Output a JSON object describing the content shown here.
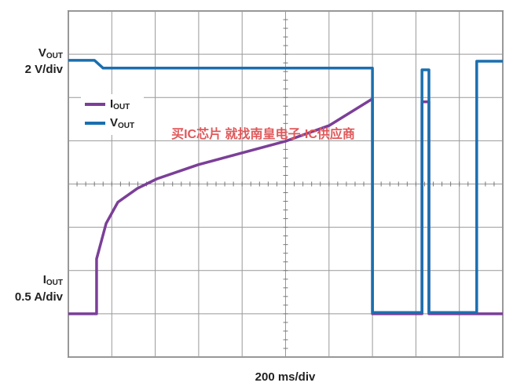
{
  "chart_data": {
    "type": "line",
    "y_label_top": {
      "main": "V",
      "sub": "OUT",
      "scale": "2 V/div"
    },
    "y_label_bottom": {
      "main": "I",
      "sub": "OUT",
      "scale": "0.5 A/div"
    },
    "x_label": "200 ms/div",
    "watermark": "买IC芯片 就找南皇电子-IC供应商",
    "xlim": [
      0,
      10
    ],
    "ylim": [
      0,
      8
    ],
    "xticks": [
      0,
      1,
      2,
      3,
      4,
      5,
      6,
      7,
      8,
      9,
      10
    ],
    "yticks": [
      0,
      1,
      2,
      3,
      4,
      5,
      6,
      7,
      8
    ],
    "grid": true,
    "series": [
      {
        "name": {
          "main": "I",
          "sub": "OUT"
        },
        "color": "#7b3f98",
        "x": [
          0,
          0.65,
          0.65,
          0.87,
          1.14,
          1.59,
          2.04,
          3.0,
          4.0,
          5.0,
          6.0,
          7.0,
          7.0,
          8.14,
          8.14,
          8.3,
          8.3,
          10
        ],
        "values": [
          1.0,
          1.0,
          2.27,
          3.09,
          3.58,
          3.9,
          4.12,
          4.45,
          4.72,
          4.99,
          5.35,
          5.97,
          1.0,
          1.0,
          5.9,
          5.9,
          1.0,
          1.0
        ]
      },
      {
        "name": {
          "main": "V",
          "sub": "OUT"
        },
        "color": "#1a6faf",
        "x": [
          0,
          0.6,
          0.8,
          7.0,
          7.0,
          8.14,
          8.14,
          8.3,
          8.3,
          9.4,
          9.4,
          10
        ],
        "values": [
          6.86,
          6.86,
          6.68,
          6.68,
          1.03,
          1.03,
          6.64,
          6.64,
          1.03,
          1.03,
          6.84,
          6.84
        ]
      }
    ]
  }
}
